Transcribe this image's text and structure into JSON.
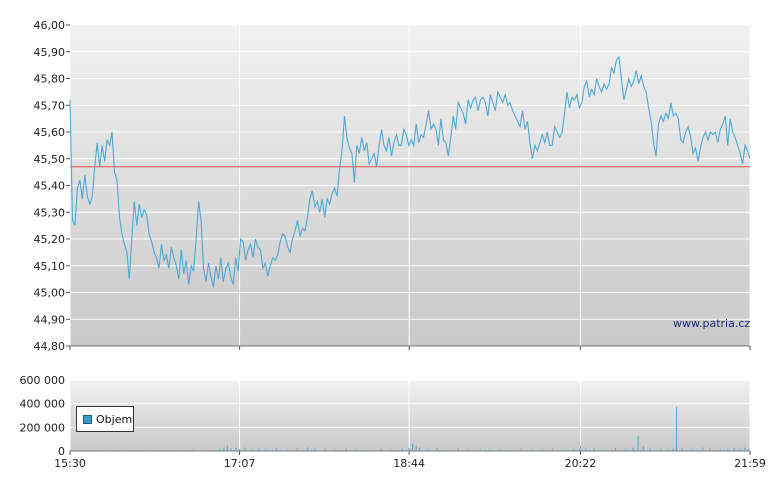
{
  "watermark": "www.patria.cz",
  "legend_label": "Objem",
  "colors": {
    "price_line": "#4fa8d2",
    "reference_line": "#e14a4a",
    "volume_bar": "#4fa8d2",
    "legend_swatch": "#3d9bc9",
    "grid": "#ffffff",
    "plot_top": "#f1f1f1",
    "plot_bottom": "#c9c9c9"
  },
  "chart_data": [
    {
      "type": "line",
      "name": "price",
      "y_ticks": [
        "46,00",
        "45,90",
        "45,80",
        "45,70",
        "45,60",
        "45,50",
        "45,40",
        "45,30",
        "45,20",
        "45,10",
        "45,00",
        "44,90",
        "44,80"
      ],
      "ylim": [
        44.8,
        46.0
      ],
      "x_ticks": [
        "15:30",
        "17:07",
        "18:44",
        "20:22",
        "21:59"
      ],
      "x_tick_minutes": [
        0,
        97,
        194,
        292,
        389
      ],
      "reference_value": 45.47,
      "points": [
        [
          0,
          45.72
        ],
        [
          1,
          45.27
        ],
        [
          2,
          45.25
        ],
        [
          3,
          45.39
        ],
        [
          4,
          45.42
        ],
        [
          5,
          45.35
        ],
        [
          6,
          45.44
        ],
        [
          7,
          45.36
        ],
        [
          8,
          45.33
        ],
        [
          9,
          45.36
        ],
        [
          10,
          45.47
        ],
        [
          11,
          45.56
        ],
        [
          12,
          45.47
        ],
        [
          13,
          45.55
        ],
        [
          14,
          45.49
        ],
        [
          15,
          45.57
        ],
        [
          16,
          45.55
        ],
        [
          17,
          45.6
        ],
        [
          18,
          45.45
        ],
        [
          19,
          45.42
        ],
        [
          20,
          45.28
        ],
        [
          21,
          45.22
        ],
        [
          22,
          45.18
        ],
        [
          23,
          45.15
        ],
        [
          24,
          45.05
        ],
        [
          25,
          45.2
        ],
        [
          26,
          45.34
        ],
        [
          27,
          45.25
        ],
        [
          28,
          45.33
        ],
        [
          29,
          45.28
        ],
        [
          30,
          45.31
        ],
        [
          31,
          45.29
        ],
        [
          32,
          45.22
        ],
        [
          33,
          45.19
        ],
        [
          34,
          45.15
        ],
        [
          35,
          45.13
        ],
        [
          36,
          45.09
        ],
        [
          37,
          45.18
        ],
        [
          38,
          45.12
        ],
        [
          39,
          45.14
        ],
        [
          40,
          45.09
        ],
        [
          41,
          45.17
        ],
        [
          42,
          45.13
        ],
        [
          43,
          45.1
        ],
        [
          44,
          45.05
        ],
        [
          45,
          45.16
        ],
        [
          46,
          45.07
        ],
        [
          47,
          45.12
        ],
        [
          48,
          45.03
        ],
        [
          49,
          45.1
        ],
        [
          50,
          45.08
        ],
        [
          51,
          45.2
        ],
        [
          52,
          45.34
        ],
        [
          53,
          45.27
        ],
        [
          54,
          45.09
        ],
        [
          55,
          45.04
        ],
        [
          56,
          45.11
        ],
        [
          57,
          45.06
        ],
        [
          58,
          45.02
        ],
        [
          59,
          45.1
        ],
        [
          60,
          45.05
        ],
        [
          61,
          45.13
        ],
        [
          62,
          45.04
        ],
        [
          63,
          45.09
        ],
        [
          64,
          45.11
        ],
        [
          65,
          45.06
        ],
        [
          66,
          45.03
        ],
        [
          67,
          45.13
        ],
        [
          68,
          45.08
        ],
        [
          69,
          45.2
        ],
        [
          70,
          45.19
        ],
        [
          71,
          45.12
        ],
        [
          72,
          45.16
        ],
        [
          73,
          45.18
        ],
        [
          74,
          45.13
        ],
        [
          75,
          45.2
        ],
        [
          76,
          45.17
        ],
        [
          77,
          45.16
        ],
        [
          78,
          45.09
        ],
        [
          79,
          45.11
        ],
        [
          80,
          45.06
        ],
        [
          81,
          45.1
        ],
        [
          82,
          45.13
        ],
        [
          83,
          45.12
        ],
        [
          84,
          45.14
        ],
        [
          85,
          45.19
        ],
        [
          86,
          45.22
        ],
        [
          87,
          45.21
        ],
        [
          88,
          45.17
        ],
        [
          89,
          45.15
        ],
        [
          90,
          45.2
        ],
        [
          91,
          45.23
        ],
        [
          92,
          45.27
        ],
        [
          93,
          45.21
        ],
        [
          94,
          45.24
        ],
        [
          95,
          45.23
        ],
        [
          96,
          45.28
        ],
        [
          97,
          45.35
        ],
        [
          98,
          45.38
        ],
        [
          99,
          45.32
        ],
        [
          100,
          45.34
        ],
        [
          101,
          45.3
        ],
        [
          102,
          45.35
        ],
        [
          103,
          45.28
        ],
        [
          104,
          45.35
        ],
        [
          105,
          45.33
        ],
        [
          106,
          45.37
        ],
        [
          107,
          45.39
        ],
        [
          108,
          45.36
        ],
        [
          109,
          45.46
        ],
        [
          110,
          45.53
        ],
        [
          111,
          45.66
        ],
        [
          112,
          45.58
        ],
        [
          113,
          45.54
        ],
        [
          114,
          45.52
        ],
        [
          115,
          45.41
        ],
        [
          116,
          45.55
        ],
        [
          117,
          45.52
        ],
        [
          118,
          45.58
        ],
        [
          119,
          45.53
        ],
        [
          120,
          45.56
        ],
        [
          121,
          45.48
        ],
        [
          122,
          45.5
        ],
        [
          123,
          45.52
        ],
        [
          124,
          45.47
        ],
        [
          125,
          45.55
        ],
        [
          126,
          45.61
        ],
        [
          127,
          45.55
        ],
        [
          128,
          45.53
        ],
        [
          129,
          45.58
        ],
        [
          130,
          45.51
        ],
        [
          131,
          45.56
        ],
        [
          132,
          45.59
        ],
        [
          133,
          45.55
        ],
        [
          134,
          45.55
        ],
        [
          135,
          45.61
        ],
        [
          136,
          45.59
        ],
        [
          137,
          45.55
        ],
        [
          138,
          45.57
        ],
        [
          139,
          45.55
        ],
        [
          140,
          45.63
        ],
        [
          141,
          45.56
        ],
        [
          142,
          45.59
        ],
        [
          143,
          45.58
        ],
        [
          144,
          45.63
        ],
        [
          145,
          45.68
        ],
        [
          146,
          45.61
        ],
        [
          147,
          45.63
        ],
        [
          148,
          45.61
        ],
        [
          149,
          45.55
        ],
        [
          150,
          45.65
        ],
        [
          151,
          45.57
        ],
        [
          152,
          45.56
        ],
        [
          153,
          45.51
        ],
        [
          154,
          45.58
        ],
        [
          155,
          45.66
        ],
        [
          156,
          45.61
        ],
        [
          157,
          45.71
        ],
        [
          158,
          45.69
        ],
        [
          159,
          45.67
        ],
        [
          160,
          45.63
        ],
        [
          161,
          45.72
        ],
        [
          162,
          45.69
        ],
        [
          163,
          45.72
        ],
        [
          164,
          45.73
        ],
        [
          165,
          45.68
        ],
        [
          166,
          45.72
        ],
        [
          167,
          45.73
        ],
        [
          168,
          45.71
        ],
        [
          169,
          45.66
        ],
        [
          170,
          45.74
        ],
        [
          171,
          45.71
        ],
        [
          172,
          45.68
        ],
        [
          173,
          45.75
        ],
        [
          174,
          45.73
        ],
        [
          175,
          45.71
        ],
        [
          176,
          45.74
        ],
        [
          177,
          45.7
        ],
        [
          178,
          45.71
        ],
        [
          179,
          45.68
        ],
        [
          180,
          45.66
        ],
        [
          181,
          45.64
        ],
        [
          182,
          45.62
        ],
        [
          183,
          45.68
        ],
        [
          184,
          45.61
        ],
        [
          185,
          45.64
        ],
        [
          186,
          45.56
        ],
        [
          187,
          45.5
        ],
        [
          188,
          45.55
        ],
        [
          189,
          45.53
        ],
        [
          190,
          45.56
        ],
        [
          191,
          45.59
        ],
        [
          192,
          45.56
        ],
        [
          193,
          45.6
        ],
        [
          194,
          45.55
        ],
        [
          195,
          45.55
        ],
        [
          196,
          45.62
        ],
        [
          197,
          45.6
        ],
        [
          198,
          45.58
        ],
        [
          199,
          45.6
        ],
        [
          200,
          45.67
        ],
        [
          201,
          45.75
        ],
        [
          202,
          45.69
        ],
        [
          203,
          45.73
        ],
        [
          204,
          45.72
        ],
        [
          205,
          45.74
        ],
        [
          206,
          45.69
        ],
        [
          207,
          45.71
        ],
        [
          208,
          45.77
        ],
        [
          209,
          45.79
        ],
        [
          210,
          45.73
        ],
        [
          211,
          45.76
        ],
        [
          212,
          45.74
        ],
        [
          213,
          45.8
        ],
        [
          214,
          45.77
        ],
        [
          215,
          45.75
        ],
        [
          216,
          45.78
        ],
        [
          217,
          45.76
        ],
        [
          218,
          45.78
        ],
        [
          219,
          45.84
        ],
        [
          220,
          45.82
        ],
        [
          221,
          45.87
        ],
        [
          222,
          45.88
        ],
        [
          223,
          45.8
        ],
        [
          224,
          45.72
        ],
        [
          225,
          45.76
        ],
        [
          226,
          45.8
        ],
        [
          227,
          45.77
        ],
        [
          228,
          45.79
        ],
        [
          229,
          45.83
        ],
        [
          230,
          45.78
        ],
        [
          231,
          45.81
        ],
        [
          232,
          45.77
        ],
        [
          233,
          45.75
        ],
        [
          234,
          45.69
        ],
        [
          235,
          45.64
        ],
        [
          236,
          45.56
        ],
        [
          237,
          45.51
        ],
        [
          238,
          45.63
        ],
        [
          239,
          45.66
        ],
        [
          240,
          45.64
        ],
        [
          241,
          45.67
        ],
        [
          242,
          45.65
        ],
        [
          243,
          45.71
        ],
        [
          244,
          45.66
        ],
        [
          245,
          45.67
        ],
        [
          246,
          45.65
        ],
        [
          247,
          45.57
        ],
        [
          248,
          45.56
        ],
        [
          249,
          45.6
        ],
        [
          250,
          45.62
        ],
        [
          251,
          45.58
        ],
        [
          252,
          45.52
        ],
        [
          253,
          45.54
        ],
        [
          254,
          45.49
        ],
        [
          255,
          45.54
        ],
        [
          256,
          45.58
        ],
        [
          257,
          45.6
        ],
        [
          258,
          45.57
        ],
        [
          259,
          45.6
        ],
        [
          260,
          45.59
        ],
        [
          261,
          45.6
        ],
        [
          262,
          45.56
        ],
        [
          263,
          45.61
        ],
        [
          264,
          45.63
        ],
        [
          265,
          45.66
        ],
        [
          266,
          45.55
        ],
        [
          267,
          45.65
        ],
        [
          268,
          45.6
        ],
        [
          269,
          45.58
        ],
        [
          270,
          45.55
        ],
        [
          271,
          45.52
        ],
        [
          272,
          45.48
        ],
        [
          273,
          45.55
        ],
        [
          274,
          45.53
        ],
        [
          275,
          45.5
        ]
      ]
    },
    {
      "type": "bar",
      "name": "volume",
      "y_ticks": [
        "600 000",
        "400 000",
        "200 000",
        "0"
      ],
      "ylim": [
        0,
        600000
      ],
      "x_ticks": [
        "15:30",
        "17:07",
        "18:44",
        "20:22",
        "21:59"
      ],
      "x_tick_minutes": [
        0,
        97,
        194,
        292,
        389
      ],
      "bars": [
        [
          1,
          12000
        ],
        [
          4,
          6000
        ],
        [
          8,
          9000
        ],
        [
          12,
          7000
        ],
        [
          16,
          10000
        ],
        [
          20,
          5000
        ],
        [
          25,
          8000
        ],
        [
          30,
          6000
        ],
        [
          35,
          7000
        ],
        [
          40,
          9000
        ],
        [
          45,
          6000
        ],
        [
          50,
          11000
        ],
        [
          55,
          8000
        ],
        [
          60,
          7000
        ],
        [
          65,
          9000
        ],
        [
          70,
          12000
        ],
        [
          76,
          6000
        ],
        [
          81,
          8000
        ],
        [
          86,
          18000
        ],
        [
          88,
          30000
        ],
        [
          90,
          45000
        ],
        [
          92,
          20000
        ],
        [
          95,
          25000
        ],
        [
          97,
          15000
        ],
        [
          100,
          30000
        ],
        [
          104,
          12000
        ],
        [
          108,
          20000
        ],
        [
          112,
          15000
        ],
        [
          118,
          25000
        ],
        [
          124,
          18000
        ],
        [
          130,
          22000
        ],
        [
          136,
          30000
        ],
        [
          140,
          15000
        ],
        [
          146,
          20000
        ],
        [
          152,
          12000
        ],
        [
          158,
          18000
        ],
        [
          164,
          14000
        ],
        [
          170,
          10000
        ],
        [
          178,
          16000
        ],
        [
          184,
          12000
        ],
        [
          190,
          18000
        ],
        [
          194,
          25000
        ],
        [
          196,
          60000
        ],
        [
          198,
          40000
        ],
        [
          200,
          30000
        ],
        [
          205,
          15000
        ],
        [
          210,
          22000
        ],
        [
          215,
          12000
        ],
        [
          222,
          20000
        ],
        [
          228,
          15000
        ],
        [
          235,
          18000
        ],
        [
          240,
          12000
        ],
        [
          246,
          16000
        ],
        [
          252,
          10000
        ],
        [
          258,
          20000
        ],
        [
          264,
          12000
        ],
        [
          270,
          15000
        ],
        [
          276,
          18000
        ],
        [
          282,
          12000
        ],
        [
          288,
          16000
        ],
        [
          292,
          45000
        ],
        [
          295,
          20000
        ],
        [
          300,
          18000
        ],
        [
          305,
          12000
        ],
        [
          312,
          25000
        ],
        [
          318,
          15000
        ],
        [
          322,
          30000
        ],
        [
          325,
          130000
        ],
        [
          328,
          40000
        ],
        [
          332,
          20000
        ],
        [
          338,
          15000
        ],
        [
          342,
          12000
        ],
        [
          345,
          18000
        ],
        [
          347,
          375000
        ],
        [
          350,
          20000
        ],
        [
          356,
          15000
        ],
        [
          362,
          30000
        ],
        [
          366,
          20000
        ],
        [
          372,
          18000
        ],
        [
          376,
          12000
        ],
        [
          380,
          25000
        ],
        [
          383,
          15000
        ],
        [
          386,
          30000
        ],
        [
          388,
          18000
        ]
      ]
    }
  ]
}
